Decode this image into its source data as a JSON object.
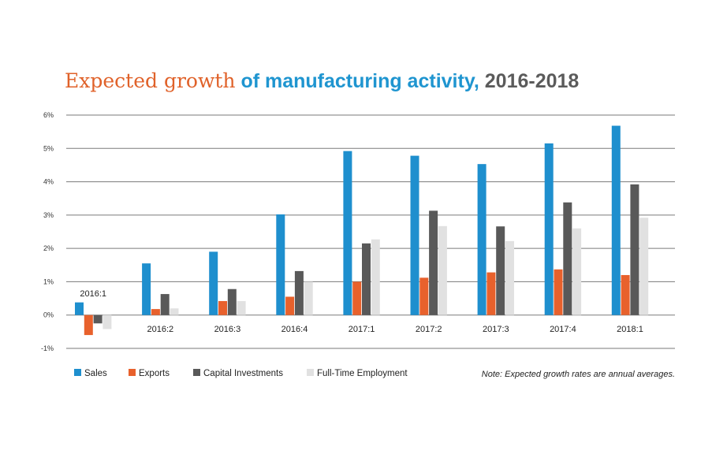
{
  "title": {
    "part1": "Expected growth",
    "part2": "of manufacturing activity,",
    "part3": "2016-2018"
  },
  "note": "Note: Expected growth rates are annual averages.",
  "colors": {
    "sales": "#1e8fce",
    "exports": "#e8612c",
    "capital": "#595959",
    "employment": "#e1e1e1"
  },
  "chart_data": {
    "type": "bar",
    "categories": [
      "2016:1",
      "2016:2",
      "2016:3",
      "2016:4",
      "2017:1",
      "2017:2",
      "2017:3",
      "2017:4",
      "2018:1"
    ],
    "series": [
      {
        "name": "Sales",
        "values": [
          0.38,
          1.55,
          1.9,
          3.02,
          4.92,
          4.78,
          4.53,
          5.15,
          5.68
        ]
      },
      {
        "name": "Exports",
        "values": [
          -0.6,
          0.18,
          0.42,
          0.55,
          1.0,
          1.12,
          1.28,
          1.37,
          1.2
        ]
      },
      {
        "name": "Capital Investments",
        "values": [
          -0.25,
          0.63,
          0.78,
          1.32,
          2.15,
          3.13,
          2.66,
          3.38,
          3.92
        ]
      },
      {
        "name": "Full-Time Employment",
        "values": [
          -0.42,
          0.2,
          0.42,
          1.0,
          2.27,
          2.67,
          2.22,
          2.6,
          2.92
        ]
      }
    ],
    "ylim": [
      -1,
      6
    ],
    "yticks": [
      "-1%",
      "0%",
      "1%",
      "2%",
      "3%",
      "4%",
      "5%",
      "6%"
    ],
    "grid": true,
    "legend_position": "bottom-left"
  }
}
